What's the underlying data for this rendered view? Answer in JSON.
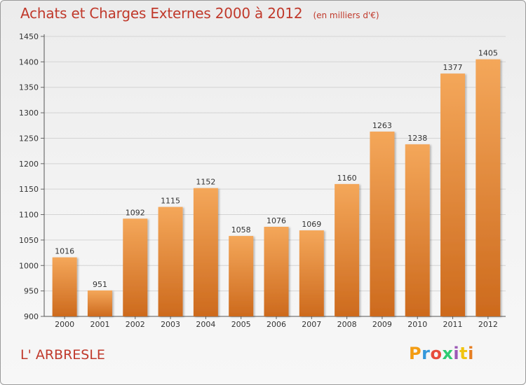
{
  "header": {
    "title": "Achats et Charges Externes 2000 à 2012",
    "subtitle": "(en milliers d'€)"
  },
  "footer": {
    "commune": "L' ARBRESLE",
    "logo_letters": [
      "P",
      "r",
      "o",
      "x",
      "i",
      "t",
      "i"
    ],
    "logo_colors": [
      "#f39c12",
      "#3498db",
      "#e74c3c",
      "#2ecc71",
      "#9b59b6",
      "#f1c40f",
      "#e67e22"
    ]
  },
  "colors": {
    "bar_top": "#f4a75a",
    "bar_bottom": "#cd6a1d",
    "accent": "#c0392b"
  },
  "chart_data": {
    "type": "bar",
    "title": "Achats et Charges Externes 2000 à 2012",
    "subtitle": "(en milliers d'€)",
    "xlabel": "",
    "ylabel": "",
    "categories": [
      "2000",
      "2001",
      "2002",
      "2003",
      "2004",
      "2005",
      "2006",
      "2007",
      "2008",
      "2009",
      "2010",
      "2011",
      "2012"
    ],
    "values": [
      1016,
      951,
      1092,
      1115,
      1152,
      1058,
      1076,
      1069,
      1160,
      1263,
      1238,
      1377,
      1405
    ],
    "ylim": [
      900,
      1450
    ],
    "yticks": [
      900,
      950,
      1000,
      1050,
      1100,
      1150,
      1200,
      1250,
      1300,
      1350,
      1400,
      1450
    ],
    "grid": true,
    "legend": "none"
  }
}
